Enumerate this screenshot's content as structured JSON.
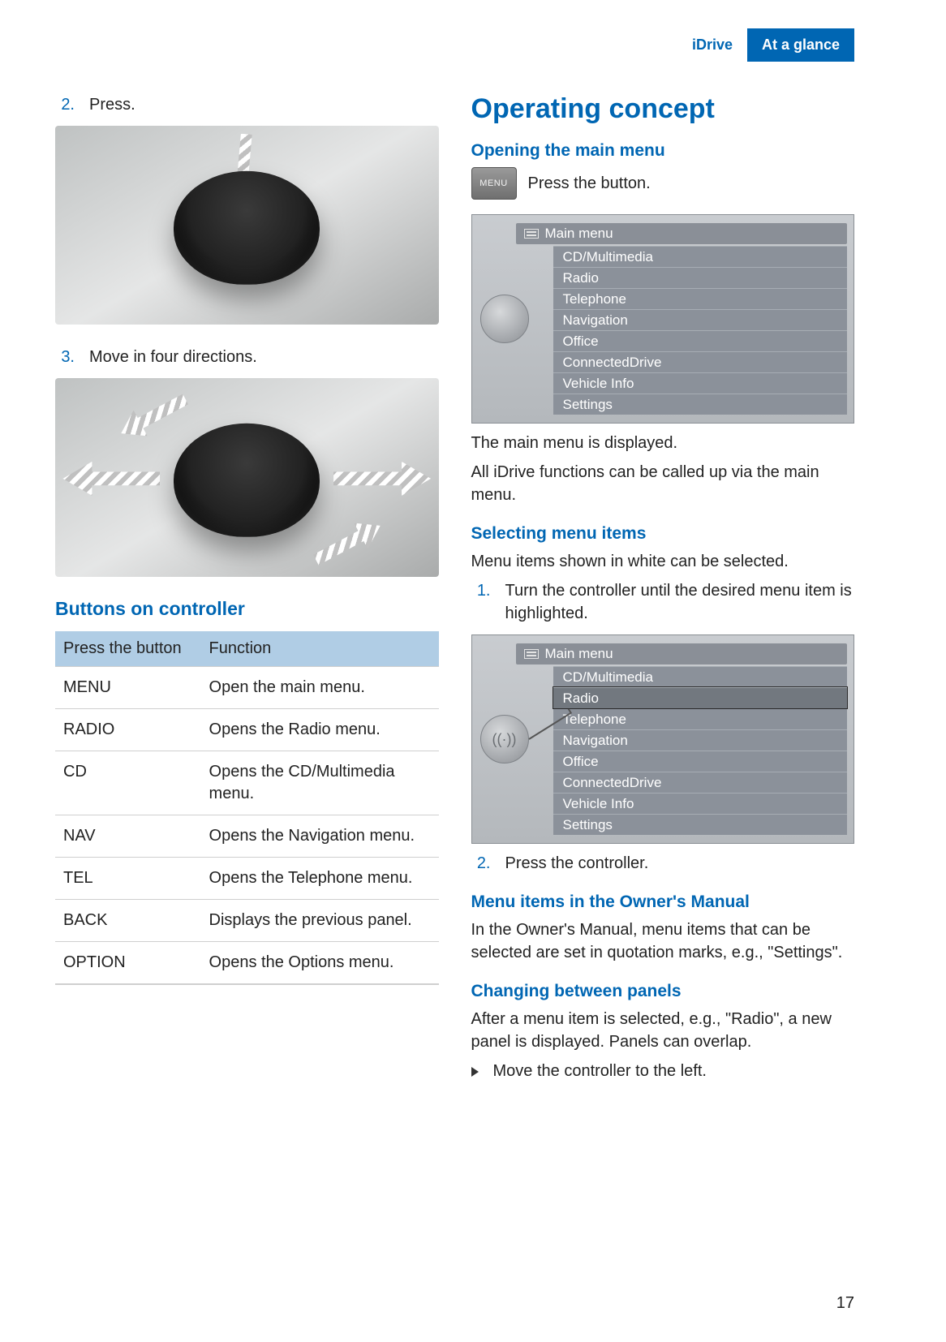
{
  "header": {
    "tab1": "iDrive",
    "tab2": "At a glance",
    "accent_color": "#0066b3"
  },
  "left": {
    "step2_num": "2.",
    "step2_text": "Press.",
    "step3_num": "3.",
    "step3_text": "Move in four directions.",
    "buttons_heading": "Buttons on controller",
    "table": {
      "col1": "Press the button",
      "col2": "Function",
      "rows": [
        {
          "btn": "MENU",
          "fn": "Open the main menu."
        },
        {
          "btn": "RADIO",
          "fn": "Opens the Radio menu."
        },
        {
          "btn": "CD",
          "fn": "Opens the CD/Multimedia menu."
        },
        {
          "btn": "NAV",
          "fn": "Opens the Navigation menu."
        },
        {
          "btn": "TEL",
          "fn": "Opens the Telephone menu."
        },
        {
          "btn": "BACK",
          "fn": "Displays the previous panel."
        },
        {
          "btn": "OPTION",
          "fn": "Opens the Options menu."
        }
      ],
      "header_bg": "#b0cde5"
    }
  },
  "right": {
    "h1": "Operating concept",
    "opening_h": "Opening the main menu",
    "menu_btn_label": "MENU",
    "press_button": "Press the button.",
    "menu_title": "Main menu",
    "menu_items": [
      "CD/Multimedia",
      "Radio",
      "Telephone",
      "Navigation",
      "Office",
      "ConnectedDrive",
      "Vehicle Info",
      "Settings"
    ],
    "after_menu_1": "The main menu is displayed.",
    "after_menu_2": "All iDrive functions can be called up via the main menu.",
    "selecting_h": "Selecting menu items",
    "selecting_intro": "Menu items shown in white can be selected.",
    "sel_step1_num": "1.",
    "sel_step1_text": "Turn the controller until the desired menu item is highlighted.",
    "highlight_index": 1,
    "radio_icon": "((·))",
    "sel_step2_num": "2.",
    "sel_step2_text": "Press the controller.",
    "owners_h": "Menu items in the Owner's Manual",
    "owners_text": "In the Owner's Manual, menu items that can be selected are set in quotation marks, e.g., \"Settings\".",
    "changing_h": "Changing between panels",
    "changing_text": "After a menu item is selected, e.g., \"Radio\", a new panel is displayed. Panels can overlap.",
    "changing_bullet": "Move the controller to the left."
  },
  "page_number": "17"
}
